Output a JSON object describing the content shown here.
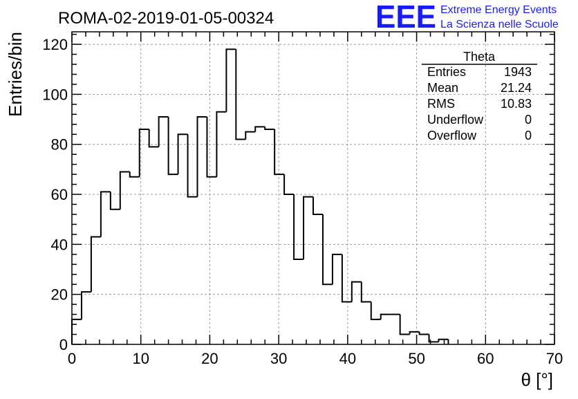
{
  "logo": {
    "letters": "EEE",
    "line1": "Extreme Energy Events",
    "line2": "La Scienza nelle Scuole",
    "color": "#1a1aff"
  },
  "chart_data": {
    "type": "histogram",
    "title": "ROMA-02-2019-01-05-00324",
    "xlabel": "θ [°]",
    "ylabel": "Entries/bin",
    "xlim": [
      0,
      70
    ],
    "ylim": [
      0,
      125
    ],
    "bin_width": 1.4,
    "grid": true,
    "x_ticks": [
      0,
      10,
      20,
      30,
      40,
      50,
      60,
      70
    ],
    "y_ticks": [
      0,
      20,
      40,
      60,
      80,
      100,
      120
    ],
    "bins": {
      "x_low": [
        0.0,
        1.4,
        2.8,
        4.2,
        5.6,
        7.0,
        8.4,
        9.8,
        11.2,
        12.6,
        14.0,
        15.4,
        16.8,
        18.2,
        19.6,
        21.0,
        22.4,
        23.8,
        25.2,
        26.6,
        28.0,
        29.4,
        30.8,
        32.2,
        33.6,
        35.0,
        36.4,
        37.8,
        39.2,
        40.6,
        42.0,
        43.4,
        44.8,
        46.2,
        47.6,
        49.0,
        50.4,
        51.8,
        53.2
      ],
      "counts": [
        10,
        21,
        43,
        61,
        54,
        69,
        67,
        86,
        79,
        91,
        68,
        84,
        59,
        91,
        67,
        93,
        118,
        82,
        85,
        87,
        86,
        68,
        60,
        34,
        59,
        52,
        24,
        36,
        17,
        25,
        17,
        10,
        12,
        12,
        4,
        5,
        4,
        1,
        2
      ]
    },
    "stats": {
      "title": "Theta",
      "rows": [
        {
          "label": "Entries",
          "value": "1943"
        },
        {
          "label": "Mean",
          "value": "21.24"
        },
        {
          "label": "RMS",
          "value": "10.83"
        },
        {
          "label": "Underflow",
          "value": "0"
        },
        {
          "label": "Overflow",
          "value": "0"
        }
      ]
    }
  }
}
